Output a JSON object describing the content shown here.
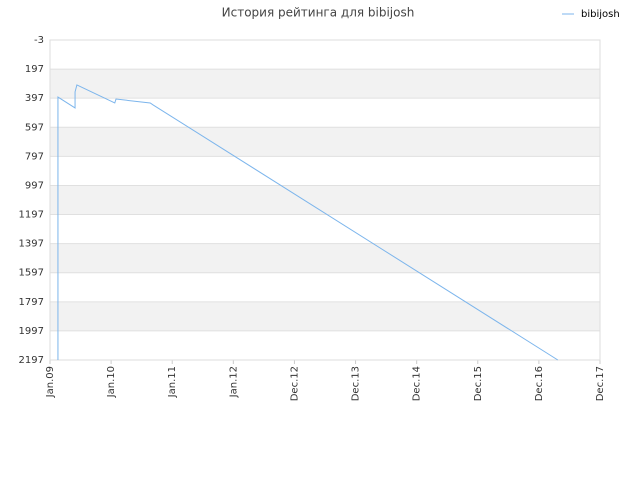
{
  "chart_data": {
    "type": "line",
    "title": "История рейтинга для bibijosh",
    "x": [
      0.13,
      0.13,
      0.41,
      0.41,
      0.44,
      1.06,
      1.08,
      1.64,
      1.69,
      8.31
    ],
    "series": [
      {
        "name": "bibijosh",
        "color": "#7cb5ec",
        "values": [
          2197,
          389,
          464,
          354,
          306,
          430,
          403,
          430,
          444,
          2197
        ]
      }
    ],
    "xlim": [
      0,
      9
    ],
    "xticks": [
      {
        "value": 0,
        "label": "Jan.09"
      },
      {
        "value": 1,
        "label": "Jan.10"
      },
      {
        "value": 2,
        "label": "Jan.11"
      },
      {
        "value": 3,
        "label": "Jan.12"
      },
      {
        "value": 4,
        "label": "Dec.12"
      },
      {
        "value": 5,
        "label": "Dec.13"
      },
      {
        "value": 6,
        "label": "Dec.14"
      },
      {
        "value": 7,
        "label": "Dec.15"
      },
      {
        "value": 8,
        "label": "Dec.16"
      },
      {
        "value": 9,
        "label": "Dec.17"
      }
    ],
    "ylim": [
      -3,
      2197
    ],
    "y_inverted": true,
    "yticks": [
      -3,
      197,
      397,
      597,
      797,
      997,
      1197,
      1397,
      1597,
      1797,
      1997,
      2197
    ],
    "grid": true,
    "legend": "top-right"
  }
}
